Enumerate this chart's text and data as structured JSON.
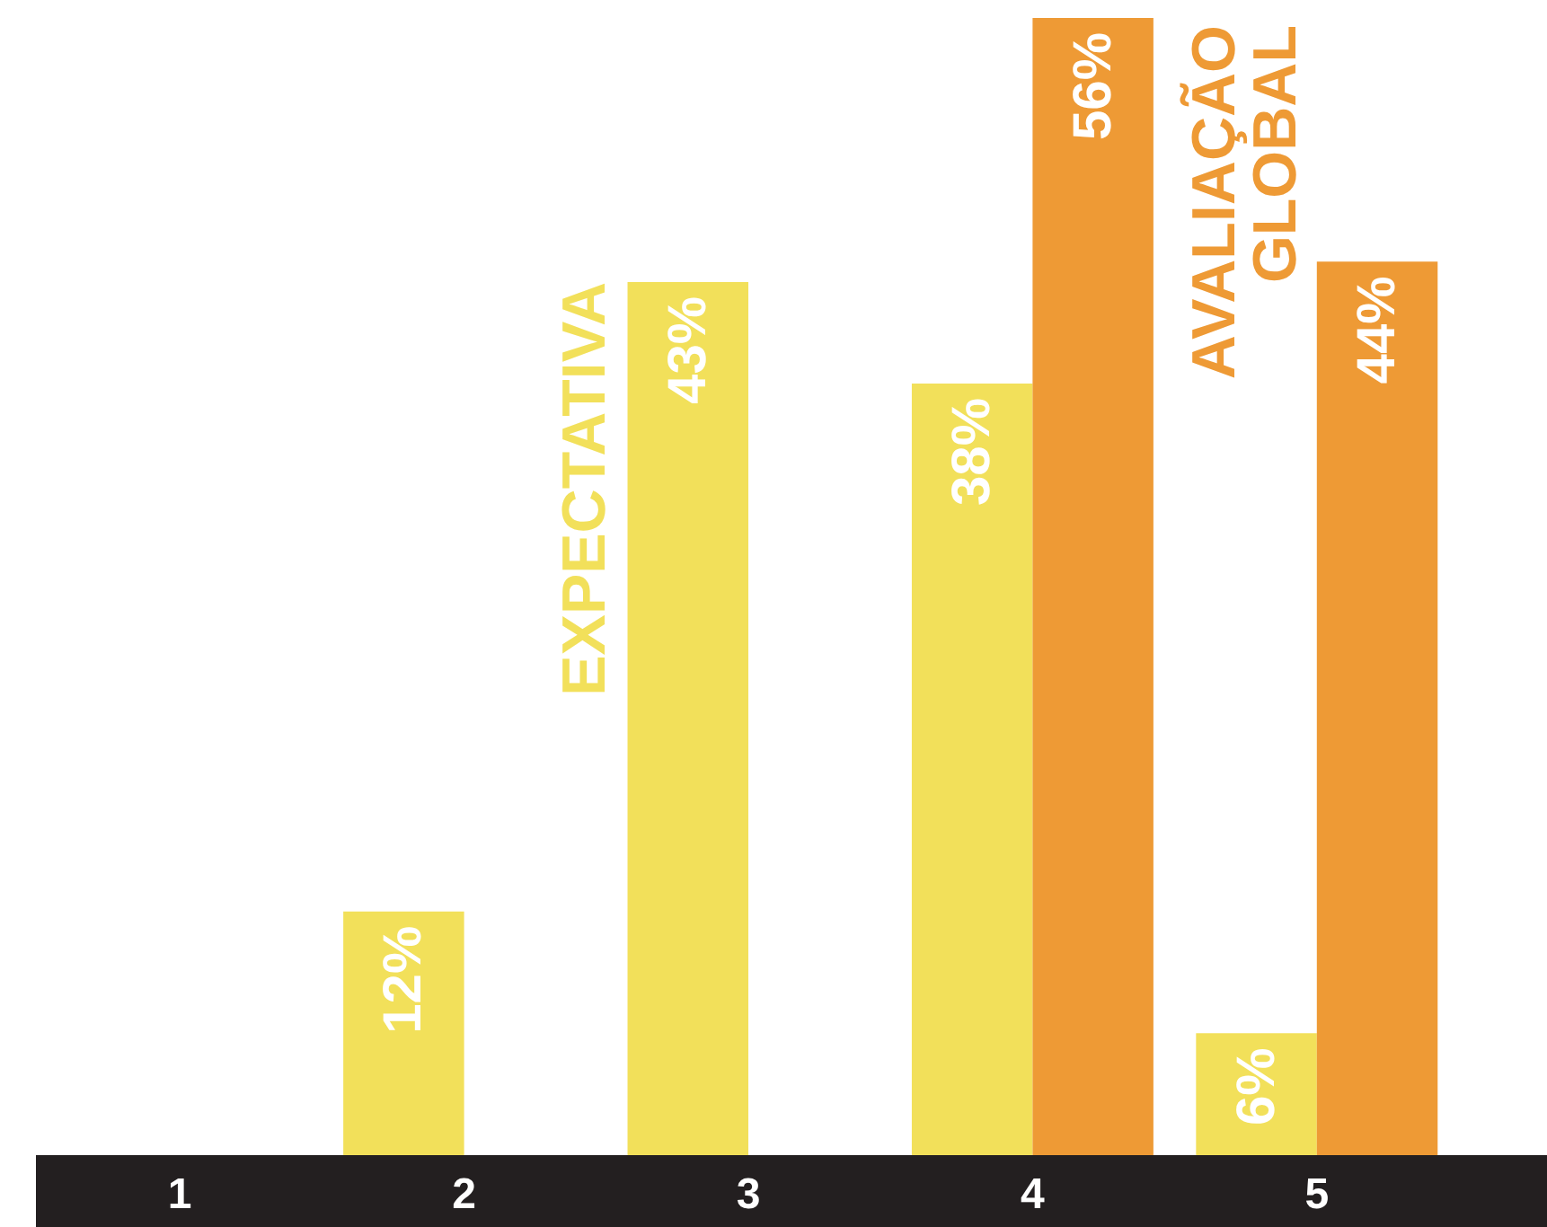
{
  "chart_data": {
    "type": "bar",
    "categories": [
      "1",
      "2",
      "3",
      "4",
      "5"
    ],
    "series": [
      {
        "name": "EXPECTATIVA",
        "color": "#f2e05a",
        "values": [
          null,
          12,
          43,
          38,
          6
        ],
        "value_labels": [
          null,
          "12%",
          "43%",
          "38%",
          "6%"
        ]
      },
      {
        "name": "AVALIAÇÃO\nGLOBAL",
        "color": "#ee9a35",
        "values": [
          null,
          null,
          null,
          56,
          44
        ],
        "value_labels": [
          null,
          null,
          null,
          "56%",
          "44%"
        ]
      }
    ],
    "legend": false,
    "grid": false
  }
}
